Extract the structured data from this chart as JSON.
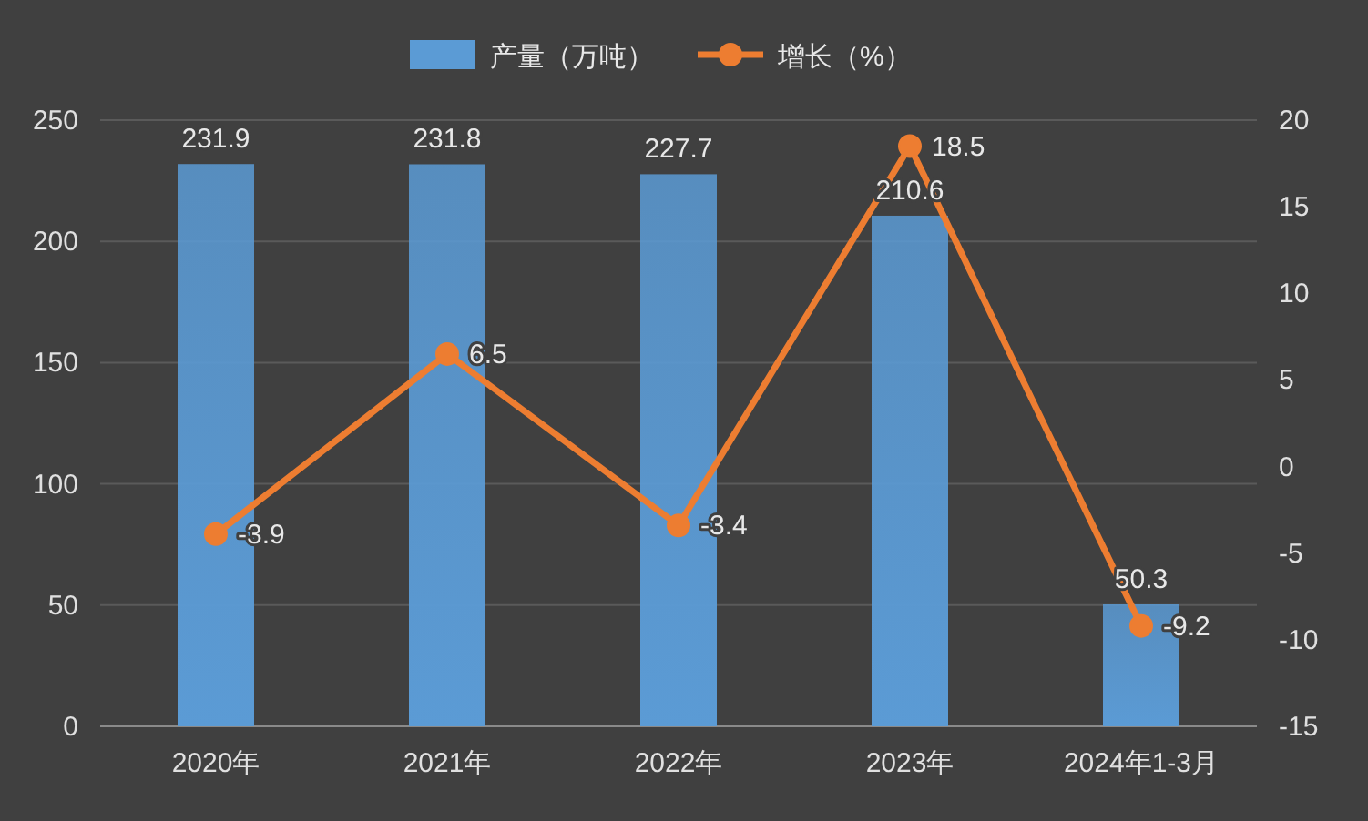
{
  "chart_data": {
    "type": "bar",
    "categories": [
      "2020年",
      "2021年",
      "2022年",
      "2023年",
      "2024年1-3月"
    ],
    "series": [
      {
        "name": "产量（万吨）",
        "color": "#5b9bd5",
        "values": [
          231.9,
          231.8,
          227.7,
          210.6,
          50.3
        ]
      },
      {
        "name": "增长（%）",
        "type": "line",
        "axis": "y2",
        "color": "#ed7d31",
        "values": [
          -3.9,
          6.5,
          -3.4,
          18.5,
          -9.2
        ]
      }
    ],
    "ylim": [
      0,
      250
    ],
    "yticks": [
      0,
      50,
      100,
      150,
      200,
      250
    ],
    "y2lim": [
      -15,
      20
    ],
    "y2ticks": [
      -15,
      -10,
      -5,
      0,
      5,
      10,
      15,
      20
    ],
    "grid": "y",
    "legend": "top",
    "marker": "circle",
    "data_labels": true
  }
}
